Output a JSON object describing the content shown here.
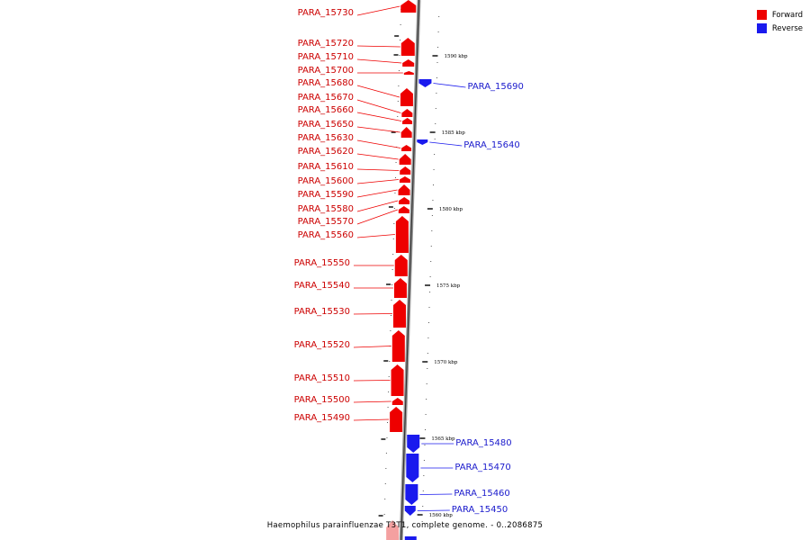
{
  "legend": {
    "forward_label": "Forward",
    "forward_color": "#ee0000",
    "reverse_label": "Reverse",
    "reverse_color": "#1a1aee"
  },
  "caption": "Haemophilus parainfluenzae T3T1, complete genome. - 0..2086875",
  "scale_labels": [
    "1590 kbp",
    "1585 kbp",
    "1580 kbp",
    "1575 kbp",
    "1570 kbp",
    "1565 kbp",
    "1560 kbp"
  ],
  "forward_genes": [
    "PARA_15730",
    "PARA_15720",
    "PARA_15710",
    "PARA_15700",
    "PARA_15680",
    "PARA_15670",
    "PARA_15660",
    "PARA_15650",
    "PARA_15630",
    "PARA_15620",
    "PARA_15610",
    "PARA_15600",
    "PARA_15590",
    "PARA_15580",
    "PARA_15570",
    "PARA_15560",
    "PARA_15550",
    "PARA_15540",
    "PARA_15530",
    "PARA_15520",
    "PARA_15510",
    "PARA_15500",
    "PARA_15490"
  ],
  "reverse_genes": [
    "PARA_15690",
    "PARA_15640",
    "PARA_15480",
    "PARA_15470",
    "PARA_15460",
    "PARA_15450"
  ]
}
